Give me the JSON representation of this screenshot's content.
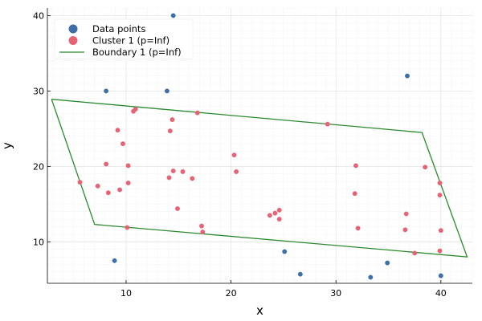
{
  "chart_data": {
    "type": "scatter",
    "xlabel": "x",
    "ylabel": "y",
    "xlim": [
      2.5,
      43
    ],
    "ylim": [
      4.5,
      41
    ],
    "xticks": [
      10,
      20,
      30,
      40
    ],
    "yticks": [
      10,
      20,
      30,
      40
    ],
    "grid": true,
    "legend_position": "top-left",
    "series": [
      {
        "name": "Data points",
        "kind": "scatter",
        "color": "#3e6fa8",
        "points": [
          [
            14.5,
            40.0
          ],
          [
            8.1,
            30.0
          ],
          [
            13.9,
            30.0
          ],
          [
            36.8,
            32.0
          ],
          [
            8.9,
            7.5
          ],
          [
            25.1,
            8.7
          ],
          [
            26.6,
            5.7
          ],
          [
            33.3,
            5.3
          ],
          [
            34.9,
            7.2
          ],
          [
            40.0,
            5.5
          ]
        ]
      },
      {
        "name": "Cluster 1 (p=Inf)",
        "kind": "scatter",
        "color": "#e46476",
        "points": [
          [
            10.9,
            27.6
          ],
          [
            10.7,
            27.3
          ],
          [
            16.8,
            27.1
          ],
          [
            14.4,
            26.2
          ],
          [
            9.2,
            24.8
          ],
          [
            14.2,
            24.7
          ],
          [
            9.7,
            23.0
          ],
          [
            29.2,
            25.6
          ],
          [
            20.3,
            21.5
          ],
          [
            8.1,
            20.3
          ],
          [
            10.2,
            20.1
          ],
          [
            31.9,
            20.1
          ],
          [
            38.5,
            19.9
          ],
          [
            20.5,
            19.3
          ],
          [
            14.5,
            19.4
          ],
          [
            15.4,
            19.3
          ],
          [
            16.3,
            18.4
          ],
          [
            14.1,
            18.5
          ],
          [
            5.6,
            17.9
          ],
          [
            10.2,
            17.8
          ],
          [
            39.9,
            17.8
          ],
          [
            7.3,
            17.4
          ],
          [
            9.4,
            16.9
          ],
          [
            8.3,
            16.5
          ],
          [
            31.8,
            16.4
          ],
          [
            39.9,
            16.2
          ],
          [
            14.9,
            14.4
          ],
          [
            24.6,
            14.2
          ],
          [
            24.2,
            13.8
          ],
          [
            23.7,
            13.5
          ],
          [
            24.6,
            13.0
          ],
          [
            36.7,
            13.7
          ],
          [
            17.2,
            12.1
          ],
          [
            10.1,
            11.9
          ],
          [
            32.1,
            11.8
          ],
          [
            36.6,
            11.6
          ],
          [
            40.0,
            11.5
          ],
          [
            17.3,
            11.3
          ],
          [
            37.5,
            8.5
          ],
          [
            39.9,
            8.8
          ]
        ]
      },
      {
        "name": "Boundary 1 (p=Inf)",
        "kind": "line",
        "color": "#2a8a2e",
        "points": [
          [
            2.9,
            28.9
          ],
          [
            38.2,
            24.5
          ],
          [
            42.5,
            8.0
          ],
          [
            7.0,
            12.3
          ],
          [
            2.9,
            28.9
          ]
        ]
      }
    ]
  }
}
